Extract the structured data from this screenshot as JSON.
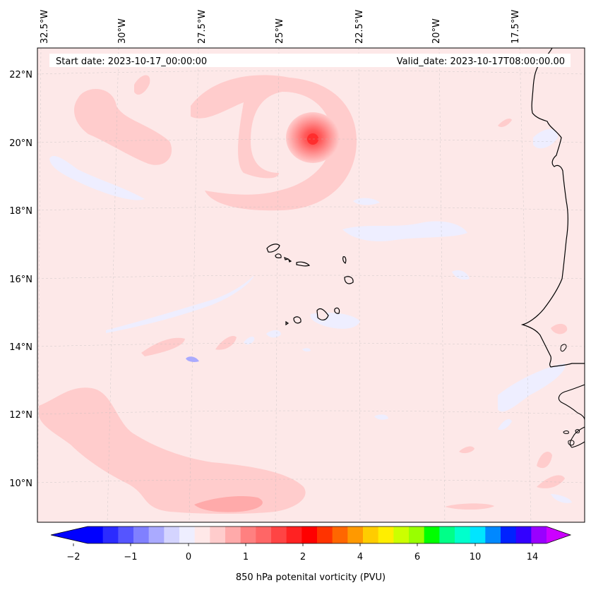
{
  "header": {
    "start_date": "Start date: 2023-10-17_00:00:00",
    "valid_date": "Valid_date: 2023-10-17T08:00:00.00"
  },
  "map": {
    "lon_ticks": [
      "32.5°W",
      "30°W",
      "27.5°W",
      "25°W",
      "22.5°W",
      "20°W",
      "17.5°W"
    ],
    "lat_ticks": [
      "22°N",
      "20°N",
      "18°N",
      "16°N",
      "14°N",
      "12°N",
      "10°N"
    ],
    "background_color": "#fde8e8",
    "coastline_color": "#000000",
    "features": [
      {
        "name": "vortex-center",
        "value_pvu": 2.0,
        "lat": 20.1,
        "lon": -23.8
      },
      {
        "name": "cape-verde-islands",
        "type": "coastline"
      },
      {
        "name": "west-africa-coast",
        "type": "coastline"
      }
    ]
  },
  "colorbar": {
    "label": "850 hPa potenital vorticity (PVU)",
    "tick_labels": [
      "−2",
      "−1",
      "0",
      "1",
      "2",
      "4",
      "6",
      "10",
      "14"
    ],
    "colors": [
      "#0000ff",
      "#2b2bff",
      "#5555ff",
      "#8080ff",
      "#aaaaff",
      "#d4d4ff",
      "#eeeeff",
      "#ffe8e8",
      "#ffcccc",
      "#ffaaaa",
      "#ff8080",
      "#ff6666",
      "#ff4444",
      "#ff2222",
      "#ff0000",
      "#ff3300",
      "#ff6600",
      "#ff9900",
      "#ffcc00",
      "#ffee00",
      "#ccff00",
      "#99ff00",
      "#00ff00",
      "#00ff88",
      "#00ffcc",
      "#00e5ff",
      "#0088ff",
      "#0022ff",
      "#3300ff",
      "#9900ff"
    ],
    "under_color": "#0000ff",
    "over_color": "#cc00ff"
  }
}
